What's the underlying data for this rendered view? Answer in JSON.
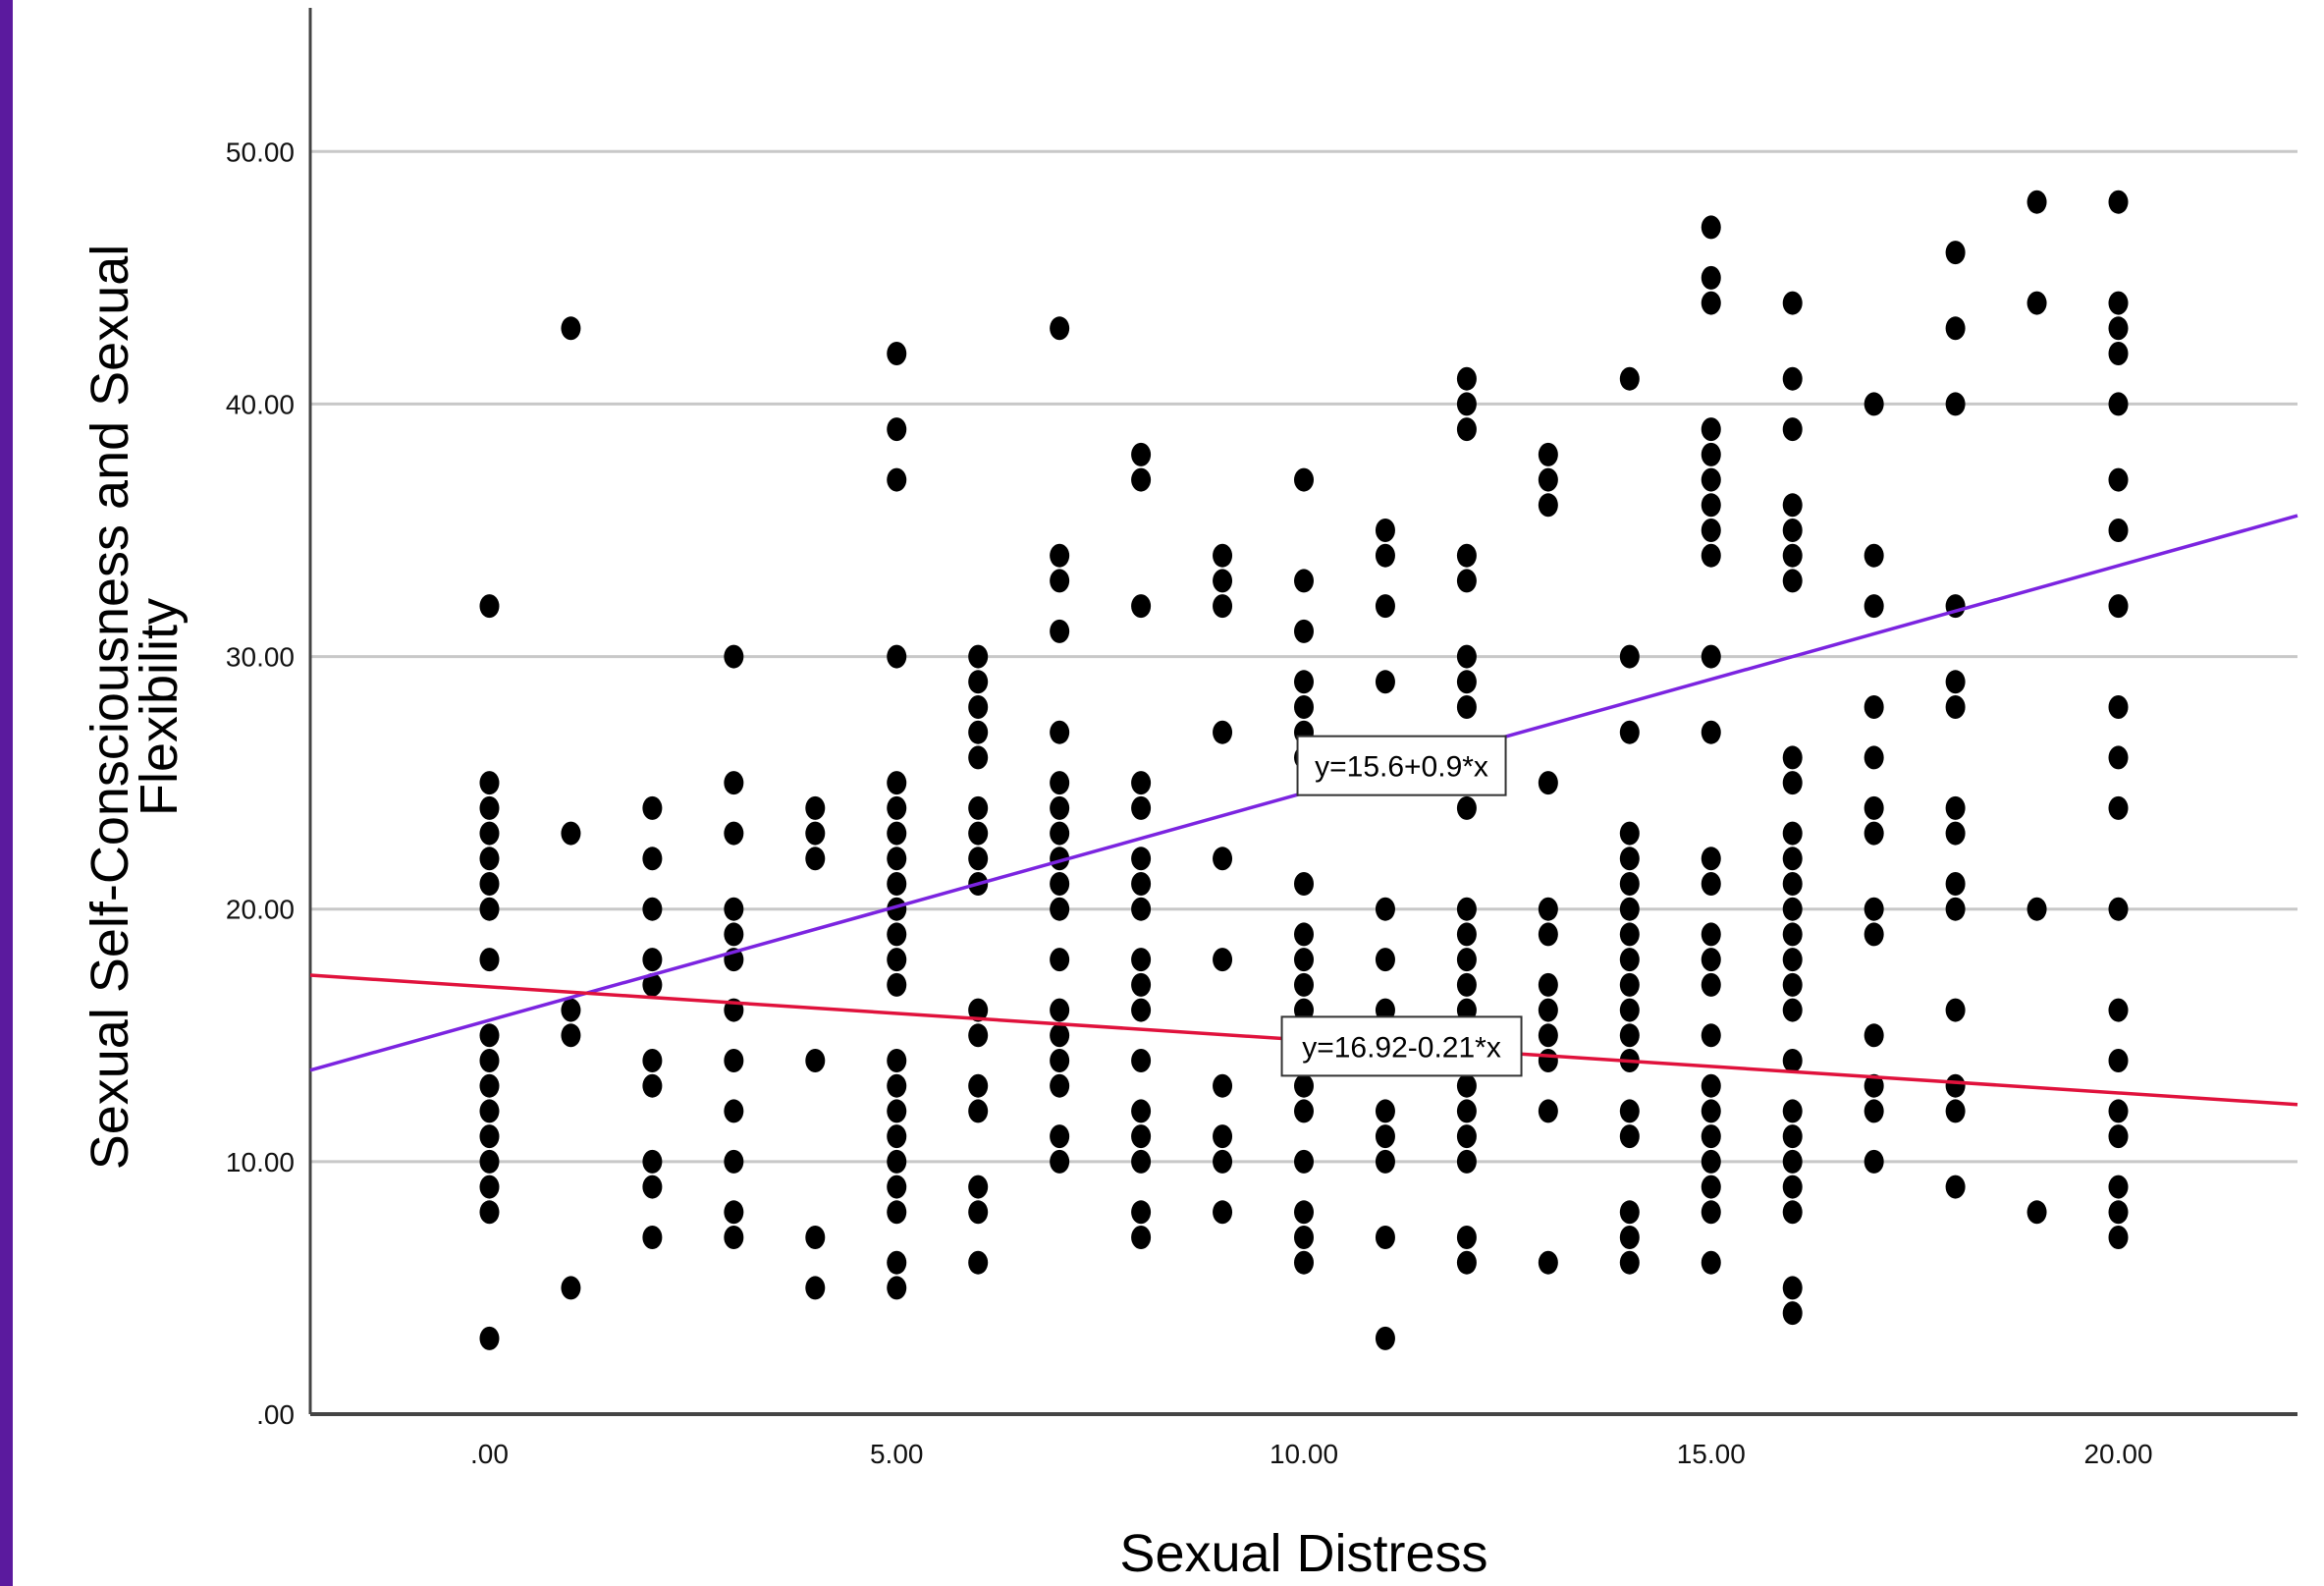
{
  "colors": {
    "left_bar": "#5b1a9e",
    "grid": "#c8c8c8",
    "axis": "#444444",
    "points": "#000000",
    "fit_line_1": "#7b24e0",
    "fit_line_2": "#e0123c"
  },
  "chart_data": {
    "type": "scatter",
    "xlabel": "Sexual Distress",
    "ylabel_lines": [
      "Sexual Self-Consciousness and Sexual",
      "Flexibility"
    ],
    "xlim": [
      -2.2,
      22.2
    ],
    "ylim": [
      0,
      56
    ],
    "x_ticks": [
      0,
      5,
      10,
      15,
      20
    ],
    "x_tick_labels": [
      ".00",
      "5.00",
      "10.00",
      "15.00",
      "20.00"
    ],
    "y_ticks": [
      0,
      10,
      20,
      30,
      40,
      50
    ],
    "y_tick_labels": [
      ".00",
      "10.00",
      "20.00",
      "30.00",
      "40.00",
      "50.00"
    ],
    "grid": "horizontal",
    "fit_lines": [
      {
        "label": "y=15.6+0.9*x",
        "intercept": 15.6,
        "slope": 0.9,
        "color": "#7b24e0",
        "label_at_x": 11.2
      },
      {
        "label": "y=16.92-0.21*x",
        "intercept": 16.92,
        "slope": -0.21,
        "color": "#e0123c",
        "label_at_x": 11.2
      }
    ],
    "points_by_x": [
      {
        "x": 0,
        "y": [
          3,
          8,
          9,
          10,
          11,
          12,
          13,
          14,
          15,
          18,
          20,
          21,
          22,
          23,
          24,
          25,
          32
        ]
      },
      {
        "x": 1,
        "y": [
          5,
          15,
          16,
          23,
          43
        ]
      },
      {
        "x": 2,
        "y": [
          7,
          9,
          10,
          13,
          14,
          17,
          18,
          20,
          22,
          24
        ]
      },
      {
        "x": 3,
        "y": [
          7,
          8,
          10,
          12,
          14,
          16,
          18,
          19,
          20,
          23,
          25,
          30
        ]
      },
      {
        "x": 4,
        "y": [
          5,
          7,
          14,
          22,
          23,
          24
        ]
      },
      {
        "x": 5,
        "y": [
          5,
          6,
          8,
          9,
          10,
          11,
          12,
          13,
          14,
          17,
          18,
          19,
          20,
          21,
          22,
          23,
          24,
          25,
          30,
          37,
          39,
          42
        ]
      },
      {
        "x": 6,
        "y": [
          6,
          8,
          9,
          12,
          13,
          15,
          16,
          21,
          22,
          23,
          24,
          26,
          27,
          28,
          29,
          30
        ]
      },
      {
        "x": 7,
        "y": [
          10,
          11,
          13,
          14,
          15,
          16,
          18,
          20,
          21,
          22,
          23,
          24,
          25,
          27,
          31,
          33,
          34,
          43
        ]
      },
      {
        "x": 8,
        "y": [
          7,
          8,
          10,
          11,
          12,
          14,
          16,
          17,
          18,
          20,
          21,
          22,
          24,
          25,
          32,
          37,
          38
        ]
      },
      {
        "x": 9,
        "y": [
          8,
          10,
          11,
          13,
          18,
          22,
          27,
          32,
          33,
          34
        ]
      },
      {
        "x": 10,
        "y": [
          6,
          7,
          8,
          10,
          12,
          13,
          15,
          16,
          17,
          18,
          19,
          21,
          26,
          27,
          28,
          29,
          31,
          33,
          37
        ]
      },
      {
        "x": 11,
        "y": [
          3,
          7,
          10,
          11,
          12,
          14,
          16,
          18,
          20,
          26,
          29,
          32,
          34,
          35
        ]
      },
      {
        "x": 12,
        "y": [
          6,
          7,
          10,
          11,
          12,
          13,
          14,
          15,
          16,
          17,
          18,
          19,
          20,
          24,
          26,
          28,
          29,
          30,
          33,
          34,
          39,
          40,
          41
        ]
      },
      {
        "x": 13,
        "y": [
          6,
          12,
          14,
          15,
          16,
          17,
          19,
          20,
          25,
          36,
          37,
          38
        ]
      },
      {
        "x": 14,
        "y": [
          6,
          7,
          8,
          11,
          12,
          14,
          15,
          16,
          17,
          18,
          19,
          20,
          21,
          22,
          23,
          27,
          30,
          41
        ]
      },
      {
        "x": 15,
        "y": [
          6,
          8,
          9,
          10,
          11,
          12,
          13,
          15,
          17,
          18,
          19,
          21,
          22,
          27,
          30,
          34,
          35,
          36,
          37,
          38,
          39,
          44,
          45,
          47
        ]
      },
      {
        "x": 16,
        "y": [
          4,
          5,
          8,
          9,
          10,
          11,
          12,
          14,
          16,
          17,
          18,
          19,
          20,
          21,
          22,
          23,
          25,
          26,
          33,
          34,
          35,
          36,
          39,
          41,
          44
        ]
      },
      {
        "x": 17,
        "y": [
          10,
          12,
          13,
          15,
          19,
          20,
          23,
          24,
          26,
          28,
          32,
          34,
          40
        ]
      },
      {
        "x": 18,
        "y": [
          9,
          12,
          13,
          16,
          20,
          21,
          23,
          24,
          28,
          29,
          32,
          40,
          43,
          46
        ]
      },
      {
        "x": 19,
        "y": [
          8,
          20,
          44,
          48
        ]
      },
      {
        "x": 20,
        "y": [
          7,
          8,
          9,
          11,
          12,
          14,
          16,
          20,
          24,
          26,
          28,
          32,
          35,
          37,
          40,
          42,
          43,
          44,
          48
        ]
      }
    ]
  }
}
